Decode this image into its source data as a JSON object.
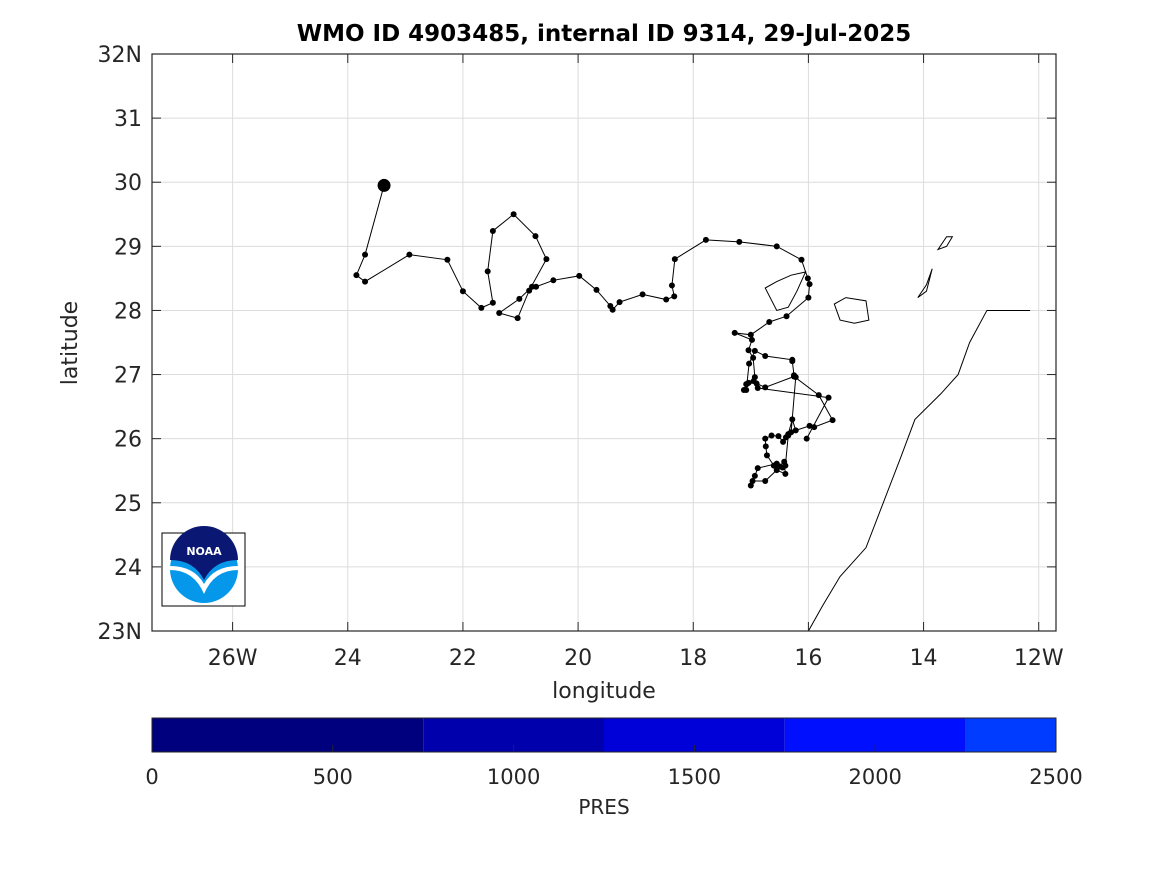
{
  "chart_data": {
    "type": "scatter",
    "title": "WMO ID 4903485, internal ID 9314, 29-Jul-2025",
    "xlabel": "longitude",
    "ylabel": "latitude",
    "xlim": [
      -27.4,
      -11.7
    ],
    "ylim": [
      23,
      32
    ],
    "grid": true,
    "x_ticks": [
      {
        "value": -26,
        "label": "26W"
      },
      {
        "value": -24,
        "label": "24"
      },
      {
        "value": -22,
        "label": "22"
      },
      {
        "value": -20,
        "label": "20"
      },
      {
        "value": -18,
        "label": "18"
      },
      {
        "value": -16,
        "label": "16"
      },
      {
        "value": -14,
        "label": "14"
      },
      {
        "value": -12,
        "label": "12W"
      }
    ],
    "y_ticks": [
      {
        "value": 23,
        "label": "23N"
      },
      {
        "value": 24,
        "label": "24"
      },
      {
        "value": 25,
        "label": "25"
      },
      {
        "value": 26,
        "label": "26"
      },
      {
        "value": 27,
        "label": "27"
      },
      {
        "value": 28,
        "label": "28"
      },
      {
        "value": 29,
        "label": "29"
      },
      {
        "value": 30,
        "label": "30"
      },
      {
        "value": 31,
        "label": "31"
      },
      {
        "value": 32,
        "label": "32N"
      }
    ],
    "track": {
      "lon": [
        -23.37,
        -23.7,
        -23.85,
        -23.7,
        -22.93,
        -22.27,
        -22.0,
        -21.68,
        -21.48,
        -21.57,
        -21.48,
        -21.12,
        -20.74,
        -20.55,
        -20.85,
        -21.05,
        -21.37,
        -21.02,
        -20.8,
        -20.73,
        -20.43,
        -19.98,
        -19.68,
        -19.44,
        -19.4,
        -19.28,
        -18.88,
        -18.47,
        -18.33,
        -18.37,
        -18.32,
        -17.78,
        -17.2,
        -16.55,
        -16.12,
        -16.01,
        -15.98,
        -16.0,
        -16.38,
        -16.68,
        -17.0,
        -17.28,
        -16.98,
        -17.04,
        -16.96,
        -16.93,
        -17.04,
        -16.9,
        -16.75,
        -16.25,
        -15.82,
        -15.58,
        -15.9,
        -15.98,
        -16.22,
        -16.28,
        -16.35,
        -16.39,
        -16.44,
        -16.52,
        -16.64,
        -16.75,
        -16.74,
        -16.72,
        -16.6,
        -16.51,
        -16.42,
        -16.4,
        -16.55,
        -16.75,
        -16.97,
        -17.0,
        -16.93,
        -16.88,
        -16.55,
        -16.45,
        -16.4,
        -16.35,
        -16.3,
        -16.22,
        -16.25,
        -16.28,
        -16.28,
        -16.75,
        -16.93,
        -17.03,
        -17.08,
        -17.08,
        -17.12,
        -16.95,
        -16.88,
        -15.65,
        -16.03
      ],
      "lat": [
        29.95,
        28.87,
        28.55,
        28.45,
        28.87,
        28.79,
        28.3,
        28.04,
        28.12,
        28.61,
        29.24,
        29.5,
        29.16,
        28.8,
        28.31,
        27.88,
        27.96,
        28.18,
        28.37,
        28.37,
        28.47,
        28.54,
        28.32,
        28.07,
        28.01,
        28.13,
        28.25,
        28.17,
        28.22,
        28.39,
        28.8,
        29.1,
        29.07,
        29.0,
        28.79,
        28.5,
        28.41,
        28.2,
        27.91,
        27.82,
        27.62,
        27.65,
        27.54,
        27.38,
        27.26,
        26.96,
        26.87,
        26.86,
        26.8,
        26.97,
        26.68,
        26.29,
        26.18,
        26.2,
        26.13,
        26.3,
        26.07,
        26.02,
        25.95,
        26.04,
        26.05,
        26.0,
        25.88,
        25.74,
        25.58,
        25.57,
        25.64,
        25.45,
        25.51,
        25.34,
        25.34,
        25.27,
        25.42,
        25.54,
        25.61,
        25.55,
        25.58,
        26.05,
        26.1,
        26.96,
        26.99,
        27.21,
        27.23,
        27.29,
        27.37,
        27.17,
        26.76,
        26.85,
        26.76,
        26.9,
        26.79,
        26.64,
        26.0
      ],
      "final_position": [
        -23.37,
        29.95
      ]
    },
    "coastline": {
      "lon": [
        -16.0,
        -15.75,
        -15.45,
        -15.0,
        -14.7,
        -14.4,
        -14.15,
        -13.7,
        -13.4,
        -13.2,
        -12.9,
        -12.15
      ],
      "lat": [
        23.0,
        23.4,
        23.85,
        24.3,
        25.0,
        25.7,
        26.3,
        26.7,
        27.0,
        27.5,
        28.0,
        28.0
      ]
    },
    "islands": [
      {
        "lon": [
          -16.05,
          -16.2,
          -16.35,
          -16.55,
          -16.75,
          -16.55,
          -16.3,
          -16.05
        ],
        "lat": [
          28.6,
          28.3,
          28.05,
          28.0,
          28.35,
          28.45,
          28.55,
          28.6
        ]
      },
      {
        "lon": [
          -15.55,
          -15.45,
          -15.2,
          -14.95,
          -15.0,
          -15.35,
          -15.55
        ],
        "lat": [
          28.1,
          27.85,
          27.8,
          27.85,
          28.15,
          28.2,
          28.1
        ]
      },
      {
        "lon": [
          -14.1,
          -13.95,
          -13.85,
          -13.95,
          -14.1
        ],
        "lat": [
          28.2,
          28.4,
          28.65,
          28.3,
          28.2
        ]
      },
      {
        "lon": [
          -13.75,
          -13.6,
          -13.5,
          -13.6,
          -13.75
        ],
        "lat": [
          28.95,
          29.15,
          29.15,
          29.0,
          28.95
        ]
      }
    ],
    "colorbar": {
      "label": "PRES",
      "range": [
        0,
        2500
      ],
      "ticks": [
        0,
        500,
        1000,
        1500,
        2000,
        2500
      ],
      "segments": [
        {
          "from": 0,
          "to": 750,
          "color": "#00007f"
        },
        {
          "from": 750,
          "to": 1250,
          "color": "#0000ad"
        },
        {
          "from": 1250,
          "to": 1750,
          "color": "#0000d9"
        },
        {
          "from": 1750,
          "to": 2250,
          "color": "#0010ff"
        },
        {
          "from": 2250,
          "to": 2500,
          "color": "#003cff"
        }
      ]
    },
    "logo": {
      "text": "NOAA",
      "colors": {
        "dark": "#0a1873",
        "light": "#0598ea"
      }
    }
  }
}
